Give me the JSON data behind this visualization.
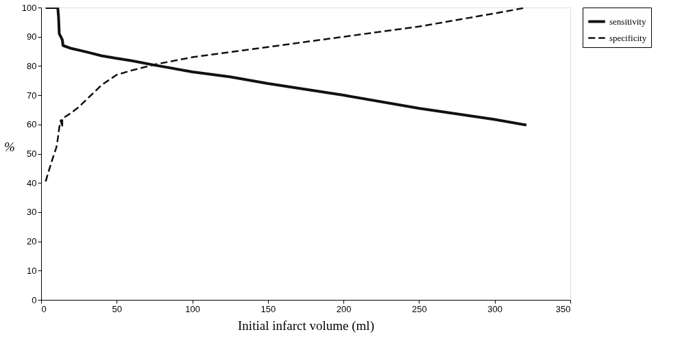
{
  "chart_data": {
    "type": "line",
    "xlabel": "Initial infarct volume (ml)",
    "ylabel": "%",
    "xlim": [
      0,
      350
    ],
    "ylim": [
      0,
      100
    ],
    "xticks": [
      0,
      50,
      100,
      150,
      200,
      250,
      300,
      350
    ],
    "yticks": [
      0,
      10,
      20,
      30,
      40,
      50,
      60,
      70,
      80,
      90,
      100
    ],
    "grid": false,
    "legend": "right",
    "marker": "none",
    "series": [
      {
        "name": "sensitivity",
        "color": "#111111",
        "line_style": "solid",
        "x": [
          3,
          11,
          11.5,
          12,
          13,
          14,
          14.5,
          20,
          30,
          40,
          50,
          60,
          75,
          100,
          125,
          150,
          200,
          250,
          300,
          321
        ],
        "values": [
          100,
          100,
          97,
          91,
          90,
          89,
          87,
          86,
          84.8,
          83.5,
          82.6,
          81.8,
          80.3,
          78,
          76.3,
          74,
          70,
          65.5,
          61.7,
          59.8
        ]
      },
      {
        "name": "specificity",
        "color": "#111111",
        "line_style": "dashed",
        "x": [
          3,
          5,
          8,
          10,
          11,
          12,
          13,
          14,
          14,
          20,
          25,
          30,
          40,
          50,
          60,
          75,
          100,
          150,
          200,
          250,
          300,
          321
        ],
        "values": [
          40.5,
          44,
          49,
          52,
          55,
          59,
          61.5,
          59,
          62,
          64,
          66,
          68.5,
          73.5,
          77,
          78.5,
          80.5,
          83,
          86.5,
          90,
          93.5,
          98,
          100
        ]
      }
    ]
  }
}
